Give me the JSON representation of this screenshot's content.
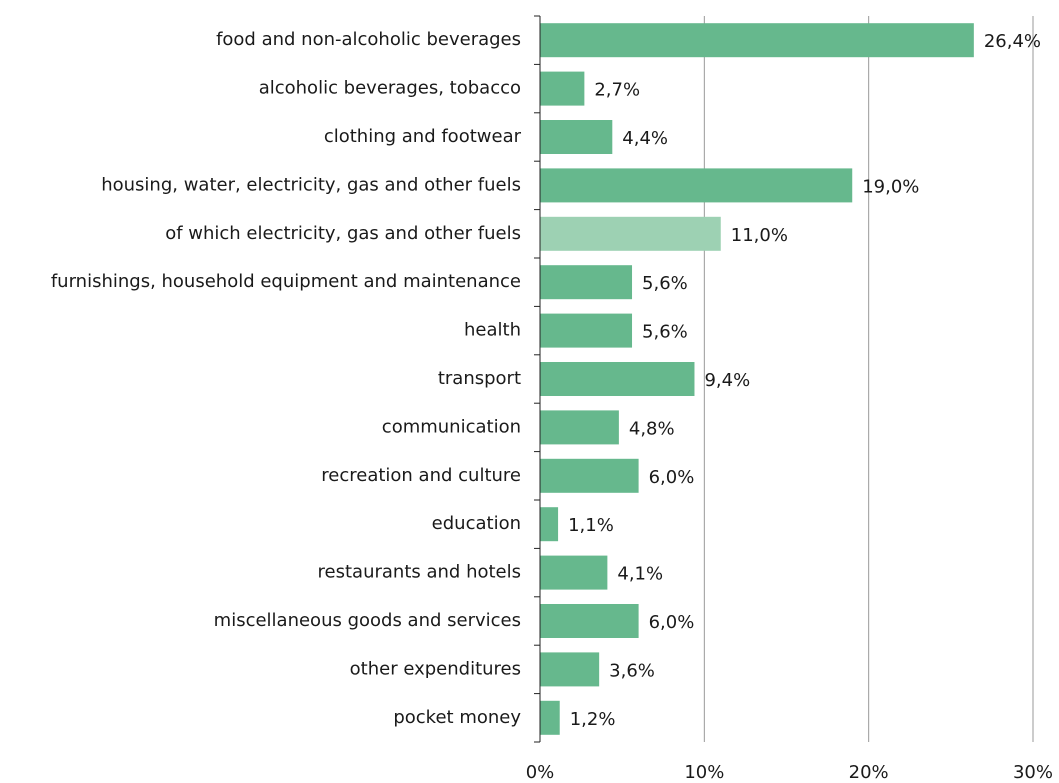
{
  "chart_data": {
    "type": "hbar",
    "categories": [
      "food and non-alcoholic beverages",
      "alcoholic beverages, tobacco",
      "clothing and footwear",
      "housing, water, electricity, gas and other fuels",
      "of which electricity, gas and other fuels",
      "furnishings, household equipment and maintenance",
      "health",
      "transport",
      "communication",
      "recreation and culture",
      "education",
      "restaurants and hotels",
      "miscellaneous goods and services",
      "other expenditures",
      "pocket money"
    ],
    "values": [
      26.4,
      2.7,
      4.4,
      19.0,
      11.0,
      5.6,
      5.6,
      9.4,
      4.8,
      6.0,
      1.1,
      4.1,
      6.0,
      3.6,
      1.2
    ],
    "value_labels": [
      "26,4%",
      "2,7%",
      "4,4%",
      "19,0%",
      "11,0%",
      "5,6%",
      "5,6%",
      "9,4%",
      "4,8%",
      "6,0%",
      "1,1%",
      "4,1%",
      "6,0%",
      "3,6%",
      "1,2%"
    ],
    "colors": [
      "#66b88d",
      "#66b88d",
      "#66b88d",
      "#66b88d",
      "#9dd1b3",
      "#66b88d",
      "#66b88d",
      "#66b88d",
      "#66b88d",
      "#66b88d",
      "#66b88d",
      "#66b88d",
      "#66b88d",
      "#66b88d",
      "#66b88d"
    ],
    "xlim": [
      0,
      30
    ],
    "xticks": [
      {
        "value": 0,
        "label": "0%"
      },
      {
        "value": 10,
        "label": "10%"
      },
      {
        "value": 20,
        "label": "20%"
      },
      {
        "value": 30,
        "label": "30%"
      }
    ],
    "grid": true
  }
}
